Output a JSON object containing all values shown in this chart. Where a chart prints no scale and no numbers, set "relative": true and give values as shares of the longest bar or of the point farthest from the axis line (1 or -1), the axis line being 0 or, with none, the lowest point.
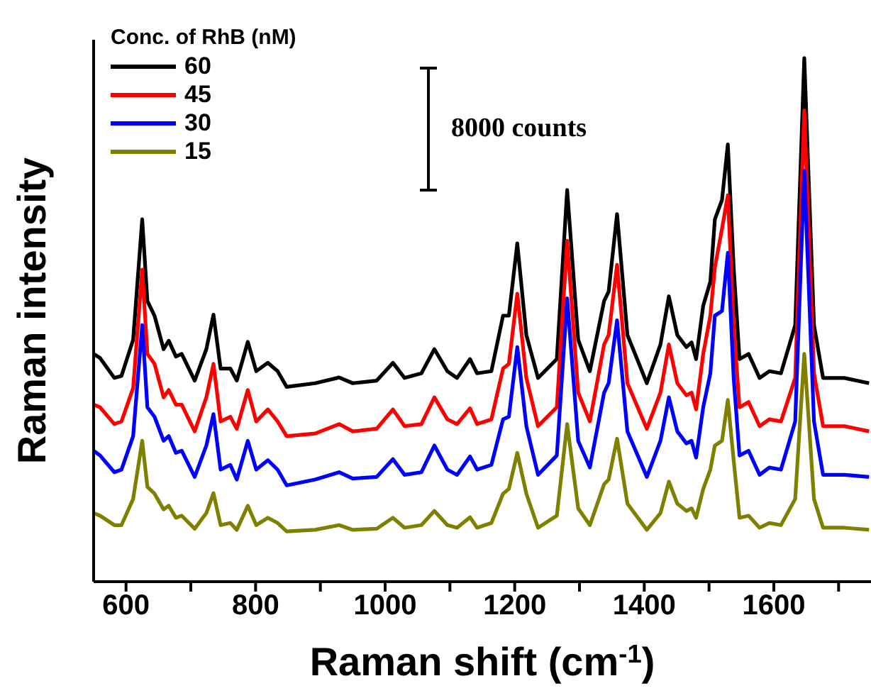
{
  "chart_data": {
    "type": "line",
    "relative": true,
    "xlabel": "Raman shift (cm$^{-1}$)",
    "ylabel": "Raman intensity",
    "legend_title": "Conc. of RhB (nM)",
    "legend": "top left",
    "grid": false,
    "marker": "none",
    "line_style": "solid",
    "annotations": [
      "8000 counts"
    ],
    "xlim": [
      550,
      1750
    ],
    "xticks": [
      600,
      {
        "value": 700,
        "label": null
      },
      800,
      {
        "value": 900,
        "label": null
      },
      1000,
      {
        "value": 1100,
        "label": null
      },
      1200,
      {
        "value": 1300,
        "label": null
      },
      1400,
      {
        "value": 1500,
        "label": null
      },
      1600,
      {
        "value": 1700,
        "label": null
      }
    ],
    "x": [
      550,
      560,
      582,
      593,
      611,
      625,
      633,
      644,
      658,
      666,
      677,
      686,
      706,
      724,
      735,
      746,
      761,
      771,
      788,
      801,
      819,
      834,
      848,
      892,
      929,
      950,
      987,
      1012,
      1030,
      1056,
      1076,
      1096,
      1111,
      1131,
      1142,
      1164,
      1182,
      1191,
      1204,
      1218,
      1236,
      1265,
      1281,
      1298,
      1316,
      1338,
      1345,
      1358,
      1374,
      1404,
      1425,
      1438,
      1451,
      1465,
      1473,
      1480,
      1491,
      1502,
      1509,
      1520,
      1529,
      1538,
      1547,
      1561,
      1578,
      1593,
      1611,
      1633,
      1647,
      1662,
      1676,
      1709,
      1747
    ],
    "series": [
      {
        "name": "60",
        "color": "#000000",
        "values": [
          0.435,
          0.427,
          0.389,
          0.393,
          0.462,
          0.692,
          0.536,
          0.508,
          0.444,
          0.46,
          0.43,
          0.435,
          0.384,
          0.444,
          0.51,
          0.407,
          0.407,
          0.384,
          0.458,
          0.402,
          0.418,
          0.402,
          0.372,
          0.379,
          0.39,
          0.379,
          0.384,
          0.418,
          0.389,
          0.398,
          0.444,
          0.402,
          0.389,
          0.425,
          0.398,
          0.402,
          0.508,
          0.508,
          0.646,
          0.471,
          0.389,
          0.425,
          0.748,
          0.462,
          0.402,
          0.536,
          0.554,
          0.702,
          0.471,
          0.379,
          0.453,
          0.545,
          0.471,
          0.448,
          0.457,
          0.425,
          0.527,
          0.573,
          0.692,
          0.729,
          0.835,
          0.6,
          0.425,
          0.435,
          0.389,
          0.402,
          0.398,
          0.49,
          1.0,
          0.49,
          0.389,
          0.389,
          0.379
        ]
      },
      {
        "name": "45",
        "color": "#ff0000",
        "values": [
          0.338,
          0.333,
          0.301,
          0.306,
          0.37,
          0.596,
          0.435,
          0.416,
          0.352,
          0.366,
          0.338,
          0.338,
          0.287,
          0.352,
          0.416,
          0.306,
          0.315,
          0.292,
          0.366,
          0.306,
          0.329,
          0.306,
          0.278,
          0.283,
          0.301,
          0.287,
          0.292,
          0.329,
          0.297,
          0.301,
          0.352,
          0.31,
          0.301,
          0.331,
          0.301,
          0.31,
          0.407,
          0.416,
          0.55,
          0.389,
          0.297,
          0.333,
          0.651,
          0.361,
          0.306,
          0.453,
          0.471,
          0.605,
          0.379,
          0.292,
          0.361,
          0.453,
          0.379,
          0.356,
          0.361,
          0.329,
          0.435,
          0.508,
          0.6,
          0.674,
          0.738,
          0.49,
          0.333,
          0.343,
          0.297,
          0.31,
          0.306,
          0.389,
          0.9,
          0.398,
          0.297,
          0.297,
          0.287
        ]
      },
      {
        "name": "30",
        "color": "#0000ff",
        "values": [
          0.25,
          0.241,
          0.209,
          0.214,
          0.278,
          0.49,
          0.333,
          0.315,
          0.269,
          0.278,
          0.246,
          0.25,
          0.2,
          0.26,
          0.32,
          0.214,
          0.223,
          0.195,
          0.269,
          0.214,
          0.232,
          0.214,
          0.184,
          0.195,
          0.209,
          0.197,
          0.2,
          0.234,
          0.204,
          0.209,
          0.26,
          0.214,
          0.204,
          0.239,
          0.214,
          0.223,
          0.31,
          0.315,
          0.448,
          0.297,
          0.204,
          0.241,
          0.541,
          0.269,
          0.218,
          0.361,
          0.379,
          0.499,
          0.287,
          0.2,
          0.269,
          0.352,
          0.287,
          0.264,
          0.269,
          0.237,
          0.333,
          0.398,
          0.508,
          0.517,
          0.628,
          0.389,
          0.241,
          0.25,
          0.204,
          0.218,
          0.214,
          0.306,
          0.785,
          0.306,
          0.204,
          0.204,
          0.2
        ]
      },
      {
        "name": "15",
        "color": "#808000",
        "values": [
          0.131,
          0.126,
          0.108,
          0.108,
          0.158,
          0.269,
          0.181,
          0.168,
          0.138,
          0.145,
          0.122,
          0.126,
          0.101,
          0.131,
          0.169,
          0.108,
          0.112,
          0.099,
          0.145,
          0.108,
          0.122,
          0.112,
          0.096,
          0.099,
          0.108,
          0.099,
          0.101,
          0.122,
          0.103,
          0.108,
          0.135,
          0.108,
          0.103,
          0.123,
          0.103,
          0.112,
          0.168,
          0.177,
          0.246,
          0.168,
          0.103,
          0.126,
          0.301,
          0.14,
          0.108,
          0.186,
          0.195,
          0.273,
          0.149,
          0.099,
          0.131,
          0.191,
          0.149,
          0.135,
          0.14,
          0.122,
          0.177,
          0.214,
          0.26,
          0.269,
          0.347,
          0.232,
          0.122,
          0.126,
          0.103,
          0.112,
          0.108,
          0.158,
          0.435,
          0.158,
          0.103,
          0.103,
          0.099
        ]
      }
    ]
  }
}
